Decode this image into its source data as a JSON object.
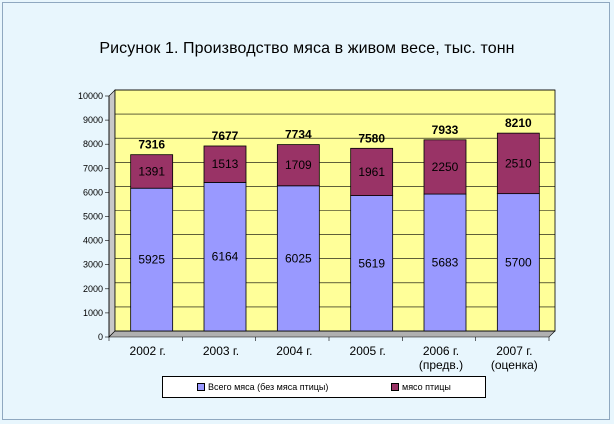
{
  "chart_data": {
    "type": "bar",
    "stacked": true,
    "title": "Рисунок 1. Производство мяса в живом весе, тыс. тонн",
    "categories": [
      [
        "2002 г."
      ],
      [
        "2003 г."
      ],
      [
        "2004 г."
      ],
      [
        "2005 г."
      ],
      [
        "2006 г.",
        "(предв.)"
      ],
      [
        "2007 г.",
        "(оценка)"
      ]
    ],
    "series": [
      {
        "name": "Всего мяса (без мяса птицы)",
        "color": "#9999ff",
        "values": [
          5925,
          6164,
          6025,
          5619,
          5683,
          5700
        ]
      },
      {
        "name": "мясо птицы",
        "color": "#993366",
        "values": [
          1391,
          1513,
          1709,
          1961,
          2250,
          2510
        ]
      }
    ],
    "totals": [
      7316,
      7677,
      7734,
      7580,
      7933,
      8210
    ],
    "ylim": [
      0,
      10000
    ],
    "yticks": [
      0,
      1000,
      2000,
      3000,
      4000,
      5000,
      6000,
      7000,
      8000,
      9000,
      10000
    ],
    "grid": true,
    "legend_position": "bottom",
    "colors": {
      "background": "#e8f6fd",
      "plot_area": "#ffff99"
    }
  }
}
